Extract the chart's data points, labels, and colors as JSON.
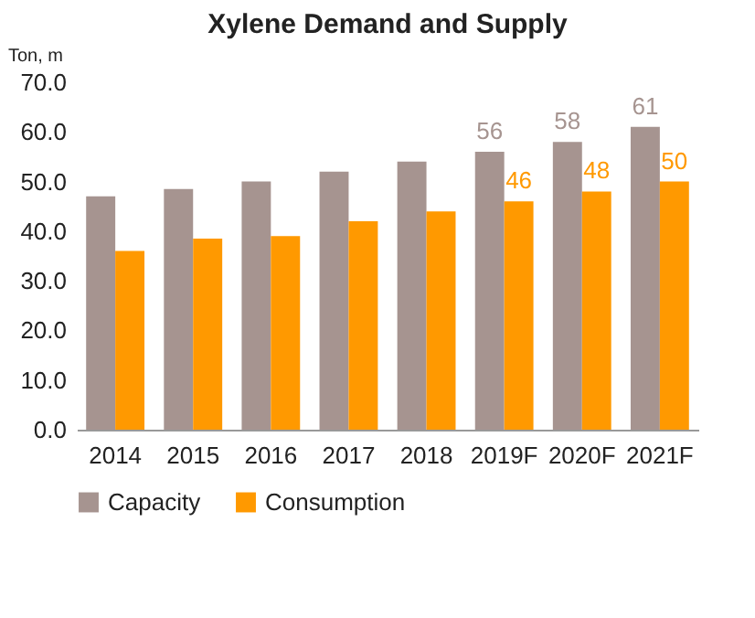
{
  "chart_data": {
    "type": "bar",
    "title": "Xylene Demand and Supply",
    "ylabel": "Ton, m",
    "categories": [
      "2014",
      "2015",
      "2016",
      "2017",
      "2018",
      "2019F",
      "2020F",
      "2021F"
    ],
    "series": [
      {
        "name": "Capacity",
        "color": "#a69490",
        "values": [
          47,
          48.5,
          50,
          52,
          54,
          56,
          58,
          61
        ],
        "value_labels": [
          null,
          null,
          null,
          null,
          null,
          "56",
          "58",
          "61"
        ]
      },
      {
        "name": "Consumption",
        "color": "#ff9900",
        "values": [
          36,
          38.5,
          39,
          42,
          44,
          46,
          48,
          50
        ],
        "value_labels": [
          null,
          null,
          null,
          null,
          null,
          "46",
          "48",
          "50"
        ]
      }
    ],
    "ylim": [
      0,
      70
    ],
    "yticks": [
      {
        "value": 0,
        "label": "0.0"
      },
      {
        "value": 10,
        "label": "10.0"
      },
      {
        "value": 20,
        "label": "20.0"
      },
      {
        "value": 30,
        "label": "30.0"
      },
      {
        "value": 40,
        "label": "40.0"
      },
      {
        "value": 50,
        "label": "50.0"
      },
      {
        "value": 60,
        "label": "60.0"
      },
      {
        "value": 70,
        "label": "70.0"
      }
    ],
    "legend": "bottom"
  }
}
